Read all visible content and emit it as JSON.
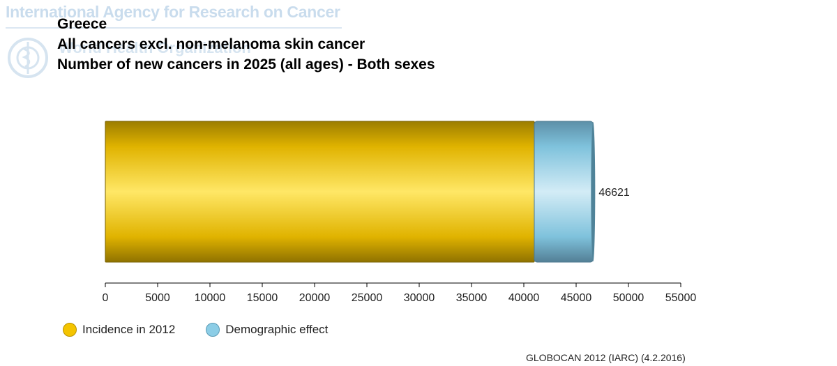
{
  "header": {
    "agency_watermark": "International Agency for Research on Cancer",
    "who_watermark": "World Health Organization",
    "title_lines": [
      "Greece",
      "All cancers excl. non-melanoma skin cancer",
      "Number of new cancers in 2025 (all ages) - Both sexes"
    ]
  },
  "chart_data": {
    "type": "bar",
    "orientation": "horizontal",
    "stacked": true,
    "categories": [
      ""
    ],
    "series": [
      {
        "name": "Incidence in 2012",
        "values": [
          41000
        ],
        "color": "#f4c400"
      },
      {
        "name": "Demographic effect",
        "values": [
          5621
        ],
        "color": "#8ccde6"
      }
    ],
    "total_label": "46621",
    "xlim": [
      0,
      55000
    ],
    "xticks": [
      0,
      5000,
      10000,
      15000,
      20000,
      25000,
      30000,
      35000,
      40000,
      45000,
      50000,
      55000
    ],
    "legend_position": "bottom-left",
    "grid": false
  },
  "footer": {
    "source": "GLOBOCAN 2012 (IARC) (4.2.2016)"
  }
}
